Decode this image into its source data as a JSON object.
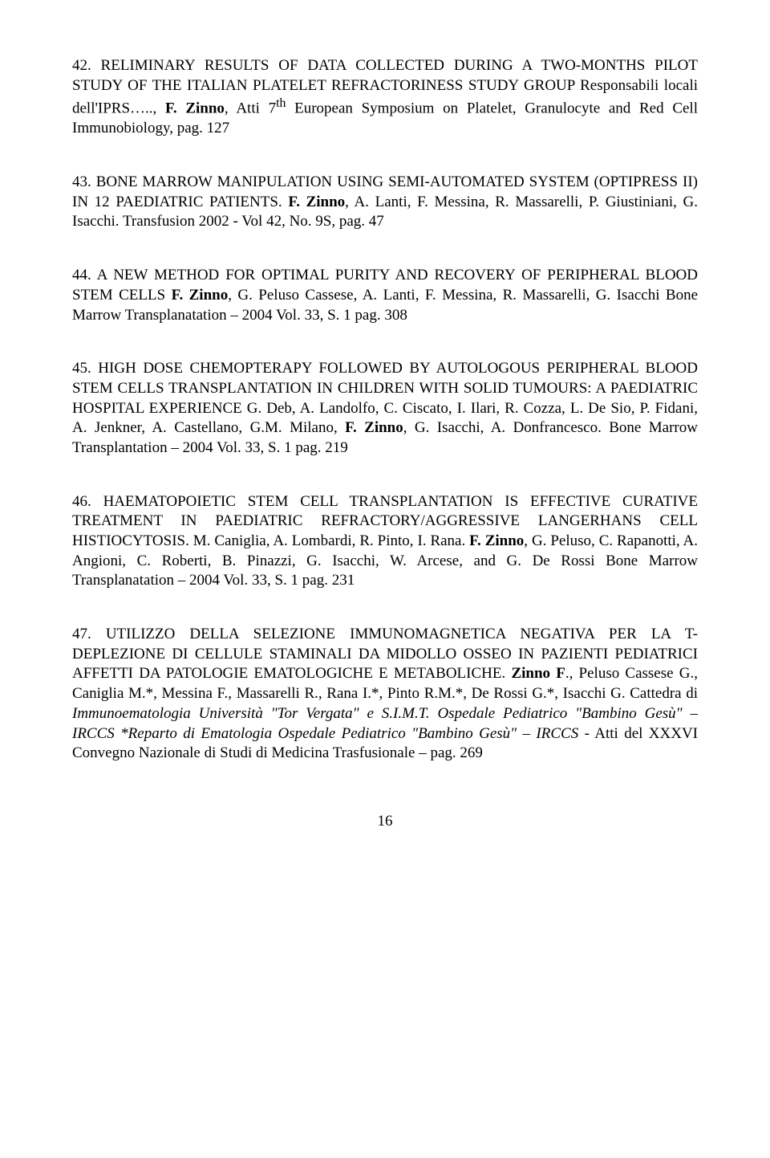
{
  "entries": [
    {
      "num": "42.",
      "text_before": "RELIMINARY RESULTS OF DATA COLLECTED DURING A TWO-MONTHS PILOT STUDY OF THE ITALIAN PLATELET REFRACTORINESS STUDY GROUP Responsabili locali dell'IPRS….., ",
      "bold": "F. Zinno",
      "text_after1": ", Atti 7",
      "sup": "th",
      "text_after2": " European Symposium on Platelet,   Granulocyte and Red Cell Immunobiology, pag. 127"
    },
    {
      "num": "43.",
      "text_before": "BONE MARROW MANIPULATION USING SEMI-AUTOMATED SYSTEM (OPTIPRESS II) IN 12 PAEDIATRIC PATIENTS. ",
      "bold": "F. Zinno",
      "text_after": ", A. Lanti, F. Messina, R. Massarelli, P. Giustiniani, G. Isacchi. Transfusion 2002 - Vol 42, No. 9S, pag. 47"
    },
    {
      "num": "44.",
      "text_before": "A NEW METHOD FOR OPTIMAL PURITY AND RECOVERY OF PERIPHERAL BLOOD STEM CELLS ",
      "bold": "F. Zinno",
      "text_after": ", G. Peluso Cassese, A. Lanti, F. Messina, R. Massarelli, G. Isacchi Bone Marrow Transplanatation – 2004 Vol. 33, S. 1 pag. 308"
    },
    {
      "num": "45.",
      "text_before": "HIGH DOSE CHEMOPTERAPY FOLLOWED BY AUTOLOGOUS PERIPHERAL   BLOOD STEM CELLS TRANSPLANTATION IN CHILDREN WITH SOLID TUMOURS: A PAEDIATRIC HOSPITAL EXPERIENCE G. Deb, A. Landolfo, C. Ciscato, I. Ilari, R. Cozza, L. De Sio, P. Fidani, A. Jenkner, A. Castellano, G.M. Milano, ",
      "bold": "F. Zinno",
      "text_after": ", G. Isacchi, A. Donfrancesco. Bone Marrow Transplantation – 2004 Vol. 33, S. 1 pag. 219"
    },
    {
      "num": "46.",
      "text_before": "HAEMATOPOIETIC STEM CELL TRANSPLANTATION IS EFFECTIVE CURATIVE TREATMENT IN PAEDIATRIC REFRACTORY/AGGRESSIVE LANGERHANS CELL HISTIOCYTOSIS. M. Caniglia, A. Lombardi, R. Pinto, I. Rana. ",
      "bold": "F. Zinno",
      "text_after": ", G. Peluso, C. Rapanotti, A. Angioni, C. Roberti, B. Pinazzi, G. Isacchi, W. Arcese,  and G. De Rossi   Bone Marrow Transplanatation – 2004 Vol. 33, S. 1 pag. 231"
    },
    {
      "num": "47.",
      "text_before": "UTILIZZO DELLA SELEZIONE IMMUNOMAGNETICA NEGATIVA PER LA T-DEPLEZIONE DI CELLULE STAMINALI DA MIDOLLO OSSEO IN PAZIENTI PEDIATRICI AFFETTI DA PATOLOGIE EMATOLOGICHE E METABOLICHE. ",
      "bold": "Zinno F",
      "text_after1": "., Peluso Cassese G., Caniglia M.*, Messina F., Massarelli R., Rana I.*, Pinto R.M.*, De Rossi G.*, Isacchi G. Cattedra di ",
      "italic": "Immunoematologia Università \"Tor Vergata\" e S.I.M.T. Ospedale Pediatrico \"Bambino Gesù\" – IRCCS *Reparto di Ematologia Ospedale Pediatrico \"Bambino Gesù\" – IRCCS",
      "text_after2": "   - Atti del XXXVI Convegno Nazionale di Studi di Medicina Trasfusionale – pag. 269"
    }
  ],
  "page_number": "16",
  "typography": {
    "font_family": "Times New Roman",
    "body_fontsize_pt": 14,
    "background_color": "#ffffff",
    "text_color": "#000000"
  }
}
